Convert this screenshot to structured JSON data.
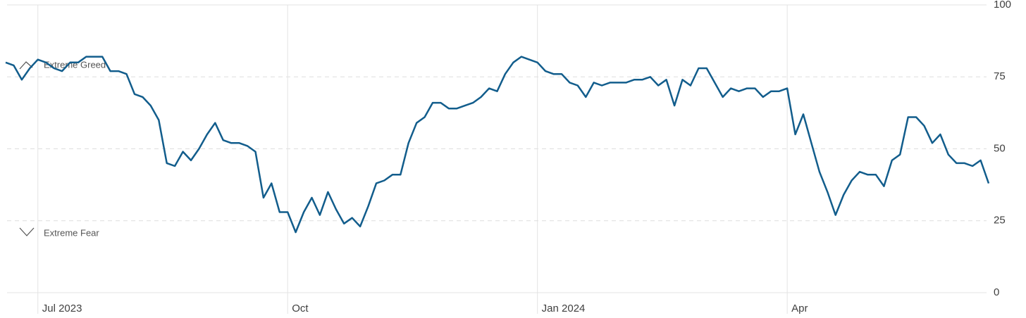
{
  "chart_data": {
    "type": "line",
    "annotations": [
      "Extreme Greed",
      "Extreme Fear"
    ],
    "categories": [
      null,
      null,
      null,
      null,
      "Jul 2023",
      null,
      null,
      null,
      null,
      null,
      null,
      null,
      null,
      null,
      null,
      null,
      null,
      null,
      null,
      null,
      null,
      null,
      null,
      null,
      null,
      null,
      null,
      null,
      null,
      null,
      null,
      null,
      null,
      null,
      null,
      "Oct",
      null,
      null,
      null,
      null,
      null,
      null,
      null,
      null,
      null,
      null,
      null,
      null,
      null,
      null,
      null,
      null,
      null,
      null,
      null,
      null,
      null,
      null,
      null,
      null,
      null,
      null,
      null,
      null,
      null,
      null,
      "Jan 2024",
      null,
      null,
      null,
      null,
      null,
      null,
      null,
      null,
      null,
      null,
      null,
      null,
      null,
      null,
      null,
      null,
      null,
      null,
      null,
      null,
      null,
      null,
      null,
      null,
      null,
      null,
      null,
      null,
      null,
      null,
      "Apr",
      null,
      null,
      null,
      null,
      null,
      null,
      null,
      null,
      null,
      null,
      null,
      null,
      null,
      null,
      null,
      null,
      null,
      null,
      null,
      null,
      null,
      null,
      null,
      null,
      null
    ],
    "values": [
      80,
      79,
      74,
      78,
      81,
      80,
      78,
      77,
      80,
      80,
      82,
      82,
      82,
      77,
      77,
      76,
      69,
      68,
      65,
      60,
      45,
      44,
      49,
      46,
      50,
      55,
      59,
      53,
      52,
      52,
      51,
      49,
      33,
      38,
      28,
      28,
      21,
      28,
      33,
      27,
      35,
      29,
      24,
      26,
      23,
      30,
      38,
      39,
      41,
      41,
      52,
      59,
      61,
      66,
      66,
      64,
      64,
      65,
      66,
      68,
      71,
      70,
      76,
      80,
      82,
      81,
      80,
      77,
      76,
      76,
      73,
      72,
      68,
      73,
      72,
      73,
      73,
      73,
      74,
      74,
      75,
      72,
      74,
      65,
      74,
      72,
      78,
      78,
      73,
      68,
      71,
      70,
      71,
      71,
      68,
      70,
      70,
      71,
      55,
      62,
      52,
      42,
      35,
      27,
      34,
      39,
      42,
      41,
      41,
      37,
      46,
      48,
      61,
      61,
      58,
      52,
      55,
      48,
      45,
      45,
      44,
      46,
      38
    ],
    "color": "#125d8c",
    "ylim": [
      0,
      100
    ],
    "yticks": [
      0,
      25,
      50,
      75,
      100
    ],
    "grid": true
  }
}
